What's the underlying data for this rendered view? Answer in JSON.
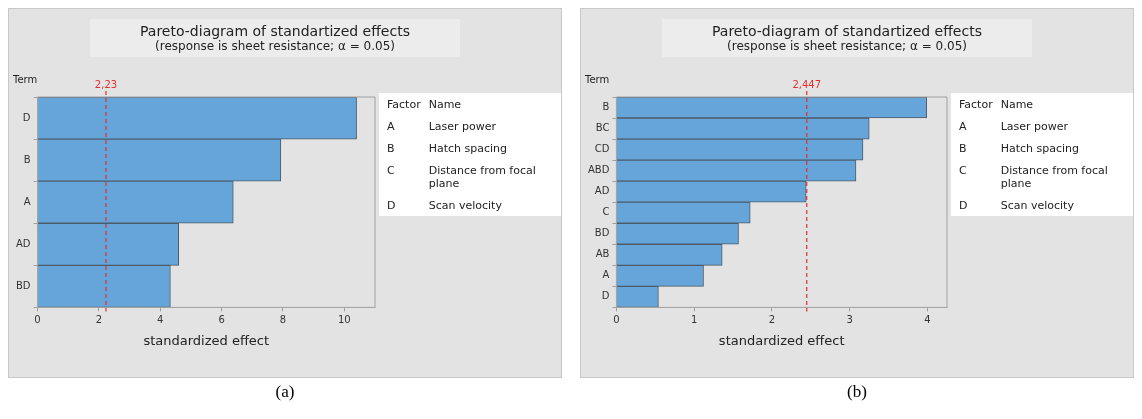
{
  "chart_data": [
    {
      "type": "bar",
      "orientation": "horizontal",
      "title": "Pareto-diagram of standartized effects",
      "subtitle": "(response is sheet resistance; α = 0.05)",
      "xlabel": "standardized effect",
      "ylabel": "Term",
      "categories": [
        "D",
        "B",
        "A",
        "AD",
        "BD"
      ],
      "values": [
        10.4,
        7.93,
        6.38,
        4.6,
        4.33
      ],
      "color": "#65a5d9",
      "xlim": [
        0,
        11
      ],
      "xticks": [
        0,
        2,
        4,
        6,
        8,
        10
      ],
      "grid": false,
      "legend": false,
      "ref_lines": [
        {
          "axis": "x",
          "value": 2.23,
          "label": "2,23",
          "color": "#e03030",
          "line_style": "dashed"
        }
      ],
      "annotations": [
        "Factor",
        "Name",
        "A",
        "Laser power",
        "B",
        "Hatch spacing",
        "C",
        "Distance from focal plane",
        "D",
        "Scan velocity",
        "(a)"
      ]
    },
    {
      "type": "bar",
      "orientation": "horizontal",
      "title": "Pareto-diagram of standartized effects",
      "subtitle": "(response is sheet resistance; α = 0.05)",
      "xlabel": "standardized effect",
      "ylabel": "Term",
      "categories": [
        "B",
        "BC",
        "CD",
        "ABD",
        "AD",
        "C",
        "BD",
        "AB",
        "A",
        "D"
      ],
      "values": [
        3.99,
        3.25,
        3.17,
        3.08,
        2.44,
        1.72,
        1.57,
        1.36,
        1.12,
        0.54
      ],
      "color": "#65a5d9",
      "xlim": [
        0,
        4.25
      ],
      "xticks": [
        0,
        1,
        2,
        3,
        4
      ],
      "grid": false,
      "legend": false,
      "ref_lines": [
        {
          "axis": "x",
          "value": 2.447,
          "label": "2,447",
          "color": "#e03030",
          "line_style": "dashed"
        }
      ],
      "annotations": [
        "Factor",
        "Name",
        "A",
        "Laser power",
        "B",
        "Hatch spacing",
        "C",
        "Distance from focal plane",
        "D",
        "Scan velocity",
        "(b)"
      ]
    }
  ]
}
